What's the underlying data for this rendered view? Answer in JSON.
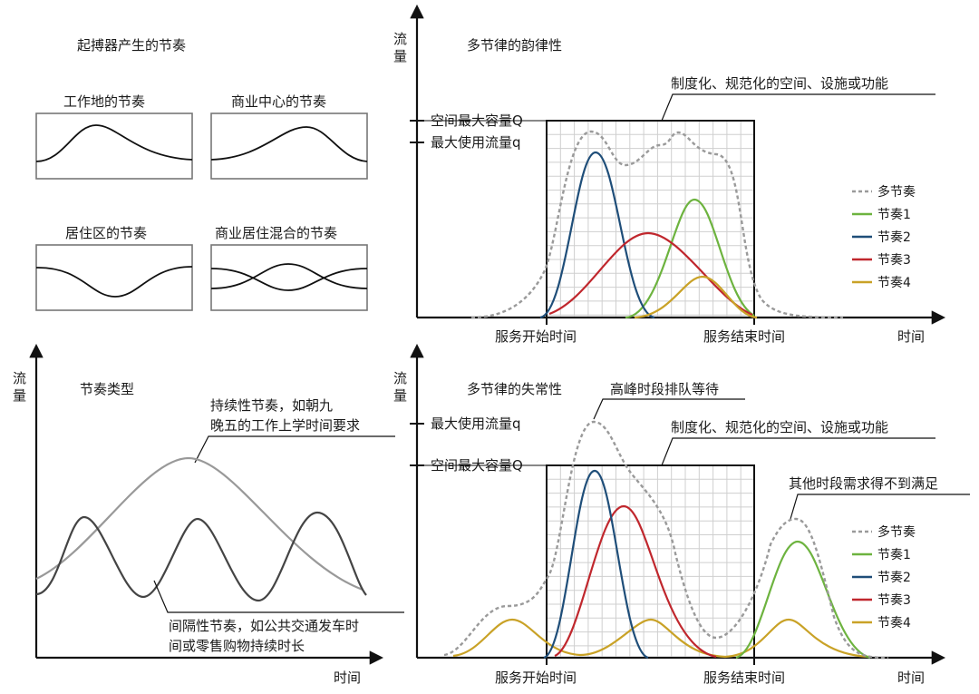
{
  "colors": {
    "multi": "#9a9a9a",
    "r1": "#6db33f",
    "r2": "#1f4e79",
    "r3": "#c0272d",
    "r4": "#c9a227",
    "dark": "#444444",
    "light": "#999999"
  },
  "topleft": {
    "title": "起搏器产生的节奏",
    "p1": "工作地的节奏",
    "p2": "商业中心的节奏",
    "p3": "居住区的节奏",
    "p4": "商业居住混合的节奏"
  },
  "topright": {
    "ylabel_1": "流",
    "ylabel_2": "量",
    "title": "多节律的韵律性",
    "box_label": "制度化、规范化的空间、设施或功能",
    "Q_label": "空间最大容量Q",
    "q_label": "最大使用流量q",
    "x_start": "服务开始时间",
    "x_end": "服务结束时间",
    "x_label": "时间",
    "legend": [
      "多节奏",
      "节奏1",
      "节奏2",
      "节奏3",
      "节奏4"
    ]
  },
  "bottomleft": {
    "ylabel_1": "流",
    "ylabel_2": "量",
    "title": "节奏类型",
    "cont_1": "持续性节奏，如朝九",
    "cont_2": "晚五的工作上学时间要求",
    "inter_1": "间隔性节奏，如公共交通发车时",
    "inter_2": "间或零售购物持续时长",
    "x_label": "时间"
  },
  "bottomright": {
    "ylabel_1": "流",
    "ylabel_2": "量",
    "title": "多节律的失常性",
    "peak_label": "高峰时段排队等待",
    "box_label": "制度化、规范化的空间、设施或功能",
    "other_label": "其他时段需求得不到满足",
    "q_label": "最大使用流量q",
    "Q_label": "空间最大容量Q",
    "x_start": "服务开始时间",
    "x_end": "服务结束时间",
    "x_label": "时间",
    "legend": [
      "多节奏",
      "节奏1",
      "节奏2",
      "节奏3",
      "节奏4"
    ]
  }
}
